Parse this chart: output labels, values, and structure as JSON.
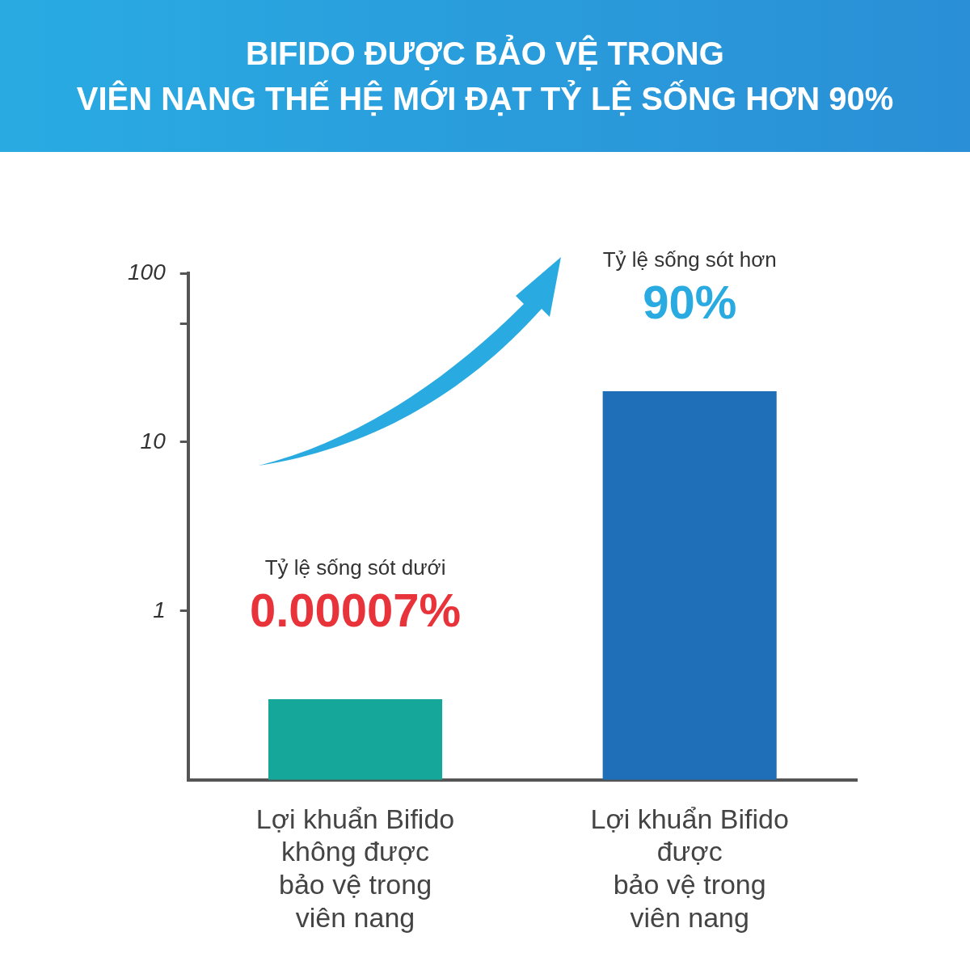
{
  "chart_data": {
    "type": "bar",
    "title": "BIFIDO ĐƯỢC BẢO VỆ TRONG\nVIÊN NANG THẾ HỆ MỚI ĐẠT TỶ LỆ SỐNG HƠN 90%",
    "categories": [
      "Lợi khuẩn Bifido\nkhông được\nbảo vệ trong\nviên nang",
      "Lợi khuẩn Bifido\nđược\nbảo vệ trong\nviên nang"
    ],
    "values": [
      0.3,
      20
    ],
    "colors": [
      "#15a89a",
      "#1e6fb8"
    ],
    "log": true,
    "ylim": [
      0.1,
      100
    ],
    "yticks": [
      1,
      10,
      {
        "value": 50,
        "label": null
      },
      100
    ],
    "grid": false,
    "legend": false,
    "annotations": [
      "Tỷ lệ sống sót dưới",
      "0.00007%",
      "Tỷ lệ sống sót hơn",
      "90%"
    ]
  }
}
